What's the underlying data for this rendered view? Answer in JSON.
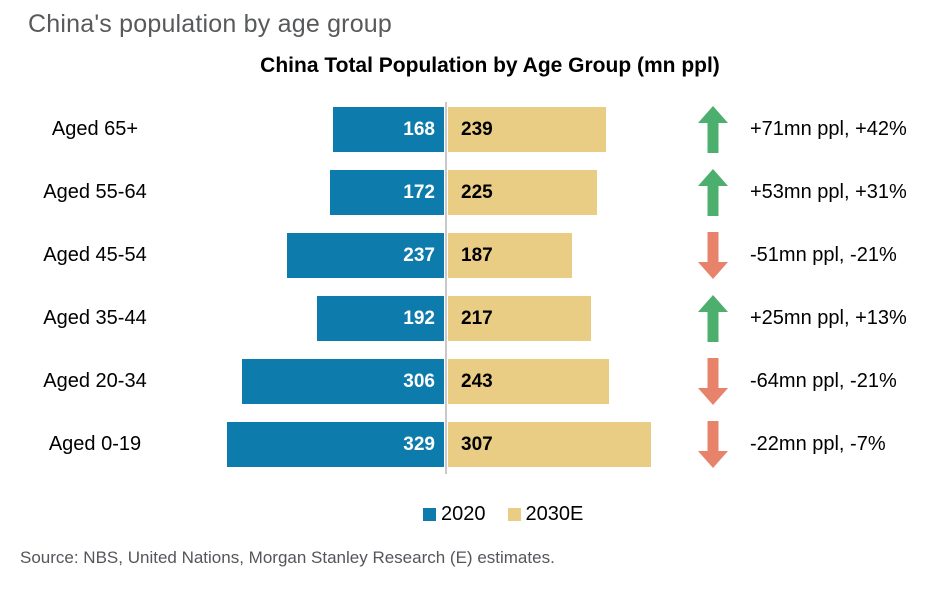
{
  "page": {
    "title": "China's population by age group",
    "source": "Source: NBS, United Nations, Morgan Stanley Research (E) estimates."
  },
  "chart_data": {
    "type": "bar",
    "subtype": "diverging-horizontal",
    "title": "China Total Population by Age Group (mn ppl)",
    "unit": "mn ppl",
    "categories": [
      "Aged 65+",
      "Aged 55-64",
      "Aged 45-54",
      "Aged 35-44",
      "Aged 20-34",
      "Aged 0-19"
    ],
    "series": [
      {
        "name": "2020",
        "values": [
          168,
          172,
          237,
          192,
          306,
          329
        ]
      },
      {
        "name": "2030E",
        "values": [
          239,
          225,
          187,
          217,
          243,
          307
        ]
      }
    ],
    "legend": {
      "position": "bottom-center",
      "entries": [
        "2020",
        "2030E"
      ]
    },
    "colors": {
      "2020": "#0e7bad",
      "2030E": "#e9cd85",
      "up": "#4caf6e",
      "down": "#e8836b",
      "axis_line": "#c9c9c9"
    },
    "rows": [
      {
        "label": "Aged 65+",
        "v2020": 168,
        "v2030": 239,
        "direction": "up",
        "change": "+71mn ppl, +42%"
      },
      {
        "label": "Aged 55-64",
        "v2020": 172,
        "v2030": 225,
        "direction": "up",
        "change": "+53mn ppl, +31%"
      },
      {
        "label": "Aged 45-54",
        "v2020": 237,
        "v2030": 187,
        "direction": "down",
        "change": "-51mn ppl, -21%"
      },
      {
        "label": "Aged 35-44",
        "v2020": 192,
        "v2030": 217,
        "direction": "up",
        "change": "+25mn ppl, +13%"
      },
      {
        "label": "Aged 20-34",
        "v2020": 306,
        "v2030": 243,
        "direction": "down",
        "change": "-64mn ppl, -21%"
      },
      {
        "label": "Aged 0-19",
        "v2020": 329,
        "v2030": 307,
        "direction": "down",
        "change": "-22mn ppl, -7%"
      }
    ]
  }
}
